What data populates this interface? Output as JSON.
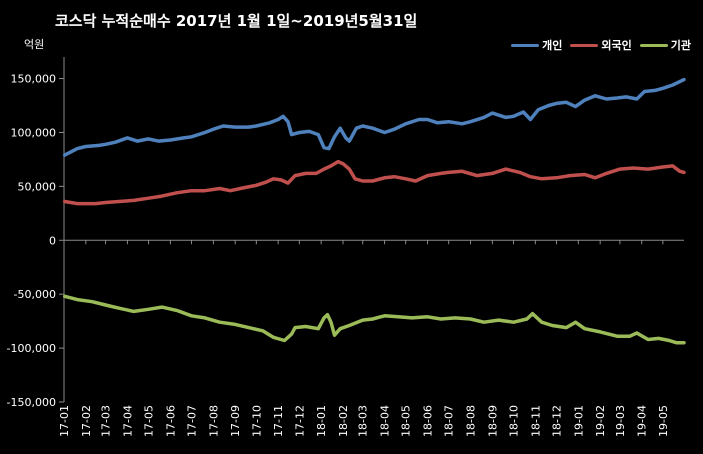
{
  "chart_data": {
    "type": "line",
    "title": "코스닥  누적순매수 2017년 1월 1일~2019년5월31일",
    "ylabel": "억원",
    "xlabel": "",
    "ylim": [
      -150000,
      170000
    ],
    "yticks": [
      150000,
      100000,
      50000,
      0,
      -50000,
      -100000,
      -150000
    ],
    "ytick_labels": [
      "150,000",
      "100,000",
      "50,000",
      "0",
      "-50,000",
      "-100,000",
      "-150,000"
    ],
    "x_ticks": [
      "17-01",
      "17-02",
      "17-03",
      "17-04",
      "17-05",
      "17-06",
      "17-07",
      "17-08",
      "17-09",
      "17-10",
      "17-11",
      "17-12",
      "18-01",
      "18-02",
      "18-03",
      "18-04",
      "18-05",
      "18-06",
      "18-07",
      "18-08",
      "18-09",
      "18-10",
      "18-11",
      "18-12",
      "19-01",
      "19-02",
      "19-03",
      "19-04",
      "19-05"
    ],
    "x_range": [
      "2017-01",
      "2019-05-31"
    ],
    "grid": false,
    "legend_position": "top-right",
    "series": [
      {
        "name": "개인",
        "color": "#4f81bd",
        "points": [
          [
            "2017-01-02",
            79000
          ],
          [
            "2017-01-20",
            85000
          ],
          [
            "2017-02-01",
            87000
          ],
          [
            "2017-02-20",
            88000
          ],
          [
            "2017-03-01",
            89000
          ],
          [
            "2017-03-15",
            91000
          ],
          [
            "2017-04-01",
            95000
          ],
          [
            "2017-04-15",
            92000
          ],
          [
            "2017-05-01",
            94000
          ],
          [
            "2017-05-15",
            92000
          ],
          [
            "2017-06-01",
            93000
          ],
          [
            "2017-06-20",
            95000
          ],
          [
            "2017-07-01",
            96000
          ],
          [
            "2017-07-20",
            100000
          ],
          [
            "2017-08-01",
            103000
          ],
          [
            "2017-08-15",
            106000
          ],
          [
            "2017-09-01",
            105000
          ],
          [
            "2017-09-20",
            105000
          ],
          [
            "2017-10-01",
            106000
          ],
          [
            "2017-10-20",
            109000
          ],
          [
            "2017-11-01",
            112000
          ],
          [
            "2017-11-08",
            115000
          ],
          [
            "2017-11-15",
            110000
          ],
          [
            "2017-11-20",
            98000
          ],
          [
            "2017-12-01",
            100000
          ],
          [
            "2017-12-15",
            101000
          ],
          [
            "2017-12-28",
            98000
          ],
          [
            "2018-01-05",
            86000
          ],
          [
            "2018-01-12",
            85000
          ],
          [
            "2018-01-20",
            96000
          ],
          [
            "2018-01-28",
            104000
          ],
          [
            "2018-02-05",
            95000
          ],
          [
            "2018-02-10",
            92000
          ],
          [
            "2018-02-20",
            104000
          ],
          [
            "2018-03-01",
            106000
          ],
          [
            "2018-03-15",
            104000
          ],
          [
            "2018-04-01",
            100000
          ],
          [
            "2018-04-15",
            103000
          ],
          [
            "2018-05-01",
            108000
          ],
          [
            "2018-05-20",
            112000
          ],
          [
            "2018-06-01",
            112000
          ],
          [
            "2018-06-15",
            109000
          ],
          [
            "2018-07-01",
            110000
          ],
          [
            "2018-07-20",
            108000
          ],
          [
            "2018-08-01",
            110000
          ],
          [
            "2018-08-20",
            114000
          ],
          [
            "2018-09-01",
            118000
          ],
          [
            "2018-09-20",
            114000
          ],
          [
            "2018-10-01",
            115000
          ],
          [
            "2018-10-15",
            119000
          ],
          [
            "2018-10-25",
            112000
          ],
          [
            "2018-11-05",
            121000
          ],
          [
            "2018-11-20",
            125000
          ],
          [
            "2018-12-01",
            127000
          ],
          [
            "2018-12-15",
            128000
          ],
          [
            "2018-12-28",
            124000
          ],
          [
            "2019-01-10",
            130000
          ],
          [
            "2019-01-25",
            134000
          ],
          [
            "2019-02-10",
            131000
          ],
          [
            "2019-02-25",
            132000
          ],
          [
            "2019-03-10",
            133000
          ],
          [
            "2019-03-25",
            131000
          ],
          [
            "2019-04-05",
            138000
          ],
          [
            "2019-04-20",
            139000
          ],
          [
            "2019-05-01",
            141000
          ],
          [
            "2019-05-15",
            144000
          ],
          [
            "2019-05-31",
            149000
          ]
        ]
      },
      {
        "name": "외국인",
        "color": "#c0504d",
        "points": [
          [
            "2017-01-02",
            36000
          ],
          [
            "2017-01-20",
            34000
          ],
          [
            "2017-02-15",
            34000
          ],
          [
            "2017-03-01",
            35000
          ],
          [
            "2017-03-20",
            36000
          ],
          [
            "2017-04-10",
            37000
          ],
          [
            "2017-05-01",
            39000
          ],
          [
            "2017-05-20",
            41000
          ],
          [
            "2017-06-10",
            44000
          ],
          [
            "2017-07-01",
            46000
          ],
          [
            "2017-07-20",
            46000
          ],
          [
            "2017-08-10",
            48000
          ],
          [
            "2017-08-25",
            46000
          ],
          [
            "2017-09-15",
            49000
          ],
          [
            "2017-10-01",
            51000
          ],
          [
            "2017-10-15",
            54000
          ],
          [
            "2017-10-25",
            57000
          ],
          [
            "2017-11-05",
            56000
          ],
          [
            "2017-11-15",
            53000
          ],
          [
            "2017-11-25",
            60000
          ],
          [
            "2017-12-10",
            62000
          ],
          [
            "2017-12-25",
            62000
          ],
          [
            "2018-01-05",
            66000
          ],
          [
            "2018-01-15",
            69000
          ],
          [
            "2018-01-25",
            73000
          ],
          [
            "2018-02-01",
            71000
          ],
          [
            "2018-02-10",
            66000
          ],
          [
            "2018-02-18",
            57000
          ],
          [
            "2018-03-01",
            55000
          ],
          [
            "2018-03-15",
            55000
          ],
          [
            "2018-04-01",
            58000
          ],
          [
            "2018-04-15",
            59000
          ],
          [
            "2018-05-01",
            57000
          ],
          [
            "2018-05-15",
            55000
          ],
          [
            "2018-06-01",
            60000
          ],
          [
            "2018-06-20",
            62000
          ],
          [
            "2018-07-01",
            63000
          ],
          [
            "2018-07-20",
            64000
          ],
          [
            "2018-08-10",
            60000
          ],
          [
            "2018-09-01",
            62000
          ],
          [
            "2018-09-20",
            66000
          ],
          [
            "2018-10-10",
            63000
          ],
          [
            "2018-10-25",
            59000
          ],
          [
            "2018-11-10",
            57000
          ],
          [
            "2018-12-01",
            58000
          ],
          [
            "2018-12-20",
            60000
          ],
          [
            "2019-01-10",
            61000
          ],
          [
            "2019-01-25",
            58000
          ],
          [
            "2019-02-10",
            62000
          ],
          [
            "2019-03-01",
            66000
          ],
          [
            "2019-03-20",
            67000
          ],
          [
            "2019-04-10",
            66000
          ],
          [
            "2019-05-01",
            68000
          ],
          [
            "2019-05-15",
            69000
          ],
          [
            "2019-05-25",
            64000
          ],
          [
            "2019-05-31",
            63000
          ]
        ]
      },
      {
        "name": "기관",
        "color": "#9bbb59",
        "points": [
          [
            "2017-01-02",
            -52000
          ],
          [
            "2017-01-20",
            -55000
          ],
          [
            "2017-02-10",
            -57000
          ],
          [
            "2017-03-01",
            -60000
          ],
          [
            "2017-03-20",
            -63000
          ],
          [
            "2017-04-10",
            -66000
          ],
          [
            "2017-05-01",
            -64000
          ],
          [
            "2017-05-20",
            -62000
          ],
          [
            "2017-06-10",
            -65000
          ],
          [
            "2017-07-01",
            -70000
          ],
          [
            "2017-07-20",
            -72000
          ],
          [
            "2017-08-10",
            -76000
          ],
          [
            "2017-09-01",
            -78000
          ],
          [
            "2017-09-20",
            -81000
          ],
          [
            "2017-10-10",
            -84000
          ],
          [
            "2017-10-25",
            -90000
          ],
          [
            "2017-11-10",
            -93000
          ],
          [
            "2017-11-20",
            -87000
          ],
          [
            "2017-11-25",
            -81000
          ],
          [
            "2017-12-10",
            -80000
          ],
          [
            "2017-12-28",
            -82000
          ],
          [
            "2018-01-05",
            -72000
          ],
          [
            "2018-01-10",
            -69000
          ],
          [
            "2018-01-15",
            -76000
          ],
          [
            "2018-01-20",
            -88000
          ],
          [
            "2018-01-28",
            -82000
          ],
          [
            "2018-02-10",
            -79000
          ],
          [
            "2018-03-01",
            -74000
          ],
          [
            "2018-03-15",
            -73000
          ],
          [
            "2018-04-01",
            -70000
          ],
          [
            "2018-04-20",
            -71000
          ],
          [
            "2018-05-10",
            -72000
          ],
          [
            "2018-06-01",
            -71000
          ],
          [
            "2018-06-20",
            -73000
          ],
          [
            "2018-07-10",
            -72000
          ],
          [
            "2018-08-01",
            -73000
          ],
          [
            "2018-08-20",
            -76000
          ],
          [
            "2018-09-10",
            -74000
          ],
          [
            "2018-10-01",
            -76000
          ],
          [
            "2018-10-20",
            -73000
          ],
          [
            "2018-10-28",
            -68000
          ],
          [
            "2018-11-10",
            -76000
          ],
          [
            "2018-11-25",
            -79000
          ],
          [
            "2018-12-15",
            -81000
          ],
          [
            "2018-12-28",
            -76000
          ],
          [
            "2019-01-10",
            -82000
          ],
          [
            "2019-02-01",
            -85000
          ],
          [
            "2019-02-25",
            -89000
          ],
          [
            "2019-03-15",
            -89000
          ],
          [
            "2019-03-25",
            -86000
          ],
          [
            "2019-04-10",
            -92000
          ],
          [
            "2019-04-25",
            -91000
          ],
          [
            "2019-05-10",
            -93000
          ],
          [
            "2019-05-20",
            -95000
          ],
          [
            "2019-05-31",
            -95000
          ]
        ]
      }
    ]
  }
}
